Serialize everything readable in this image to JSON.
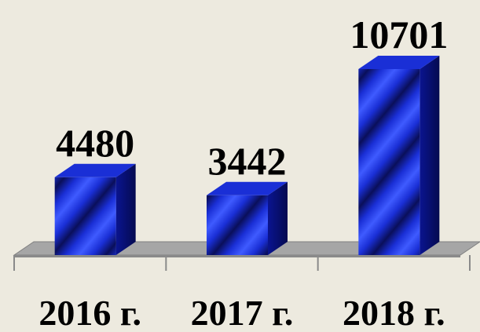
{
  "chart_data": {
    "type": "bar3d",
    "categories": [
      "2016 г.",
      "2017 г.",
      "2018 г."
    ],
    "values": [
      4480,
      3442,
      10701
    ],
    "color": "#1a2fd6"
  }
}
